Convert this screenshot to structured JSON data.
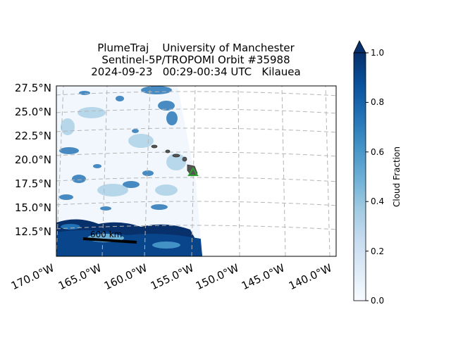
{
  "title": {
    "line1": "PlumeTraj    University of Manchester",
    "line2": "Sentinel-5P/TROPOMI Orbit #35988",
    "line3": "2024-09-23   00:29-00:34 UTC   Kilauea"
  },
  "map": {
    "lat_labels": [
      "27.5°N",
      "25.0°N",
      "22.5°N",
      "20.0°N",
      "17.5°N",
      "15.0°N",
      "12.5°N"
    ],
    "lon_labels": [
      "170.0°W",
      "165.0°W",
      "160.0°W",
      "155.0°W",
      "150.0°W",
      "145.0°W",
      "140.0°W"
    ],
    "scale_bar_label": "600 km",
    "volcano_marker_color": "#2ca02c",
    "grid": true
  },
  "colorbar": {
    "label": "Cloud Fraction",
    "ticks": [
      "0.0",
      "0.2",
      "0.4",
      "0.6",
      "0.8",
      "1.0"
    ],
    "range": [
      0.0,
      1.0
    ],
    "colormap": "Blues",
    "color_low": "#f7fbff",
    "color_high": "#08306b"
  }
}
